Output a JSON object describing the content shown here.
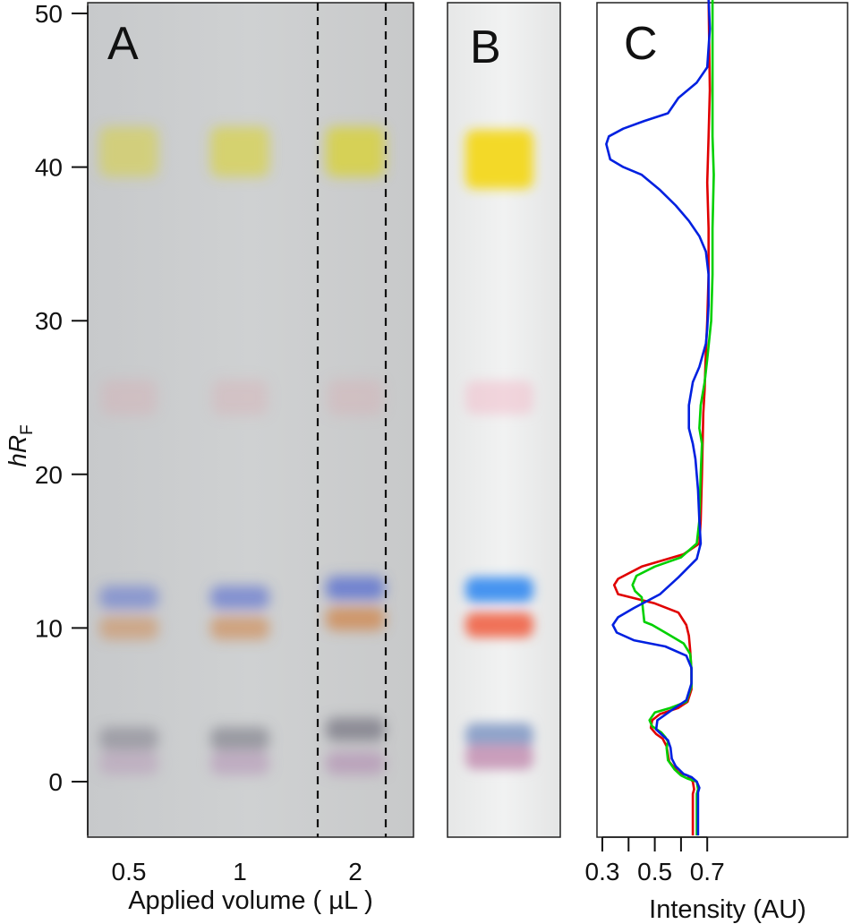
{
  "chart_data": [
    {
      "panel": "A",
      "type": "image",
      "panel_label": "A",
      "ylabel_main": "hR",
      "ylabel_sub": "F",
      "ylim": [
        -3.5,
        50.5
      ],
      "yticks": [
        0,
        10,
        20,
        30,
        40,
        50
      ],
      "xlabel": "Applied volume ( µL )",
      "categories": [
        "0.5",
        "1",
        "2"
      ],
      "bands": [
        {
          "name": "yellow",
          "hRF": 41,
          "color": "#d8d23a"
        },
        {
          "name": "pink",
          "hRF": 25,
          "color": "#d9a8b0"
        },
        {
          "name": "blue",
          "hRF": 12,
          "color": "#5a6fd0"
        },
        {
          "name": "orange",
          "hRF": 10,
          "color": "#cf8a52"
        },
        {
          "name": "grey",
          "hRF": 2.8,
          "color": "#7d7c88"
        },
        {
          "name": "mauve",
          "hRF": 1.2,
          "color": "#b79ab8"
        }
      ],
      "dashed_lines": 2
    },
    {
      "panel": "B",
      "type": "image",
      "panel_label": "B",
      "bands": [
        {
          "name": "yellow",
          "hRF": 40.5,
          "color": "#f3d820"
        },
        {
          "name": "pink",
          "hRF": 25,
          "color": "#f2b8c8"
        },
        {
          "name": "blue",
          "hRF": 12.5,
          "color": "#3d8ef0"
        },
        {
          "name": "red-orange",
          "hRF": 10.2,
          "color": "#f06a50"
        },
        {
          "name": "blue-grey",
          "hRF": 3,
          "color": "#8aa0c8"
        },
        {
          "name": "pink-lilac",
          "hRF": 1.6,
          "color": "#c89ab8"
        }
      ]
    },
    {
      "panel": "C",
      "type": "line",
      "panel_label": "C",
      "xlabel": "Intensity (AU)",
      "xticks": [
        "0.3",
        "0.5",
        "0.7"
      ],
      "xlim": [
        0.28,
        0.79
      ],
      "ylim": [
        -3.5,
        50.5
      ],
      "series": [
        {
          "color": "#e00000",
          "points": [
            [
              0.705,
              51
            ],
            [
              0.71,
              45
            ],
            [
              0.705,
              42
            ],
            [
              0.7,
              39
            ],
            [
              0.705,
              36
            ],
            [
              0.705,
              33
            ],
            [
              0.7,
              30
            ],
            [
              0.695,
              28
            ],
            [
              0.69,
              25.5
            ],
            [
              0.685,
              24
            ],
            [
              0.68,
              20
            ],
            [
              0.675,
              17
            ],
            [
              0.67,
              15.5
            ],
            [
              0.61,
              14.8
            ],
            [
              0.45,
              14
            ],
            [
              0.36,
              13.2
            ],
            [
              0.345,
              12.8
            ],
            [
              0.36,
              12.2
            ],
            [
              0.5,
              11.6
            ],
            [
              0.59,
              11
            ],
            [
              0.62,
              10.2
            ],
            [
              0.63,
              9.5
            ],
            [
              0.635,
              8.5
            ],
            [
              0.64,
              7.2
            ],
            [
              0.64,
              6
            ],
            [
              0.625,
              5.2
            ],
            [
              0.59,
              4.8
            ],
            [
              0.52,
              4.4
            ],
            [
              0.49,
              4
            ],
            [
              0.485,
              3.5
            ],
            [
              0.505,
              3.1
            ],
            [
              0.53,
              2.8
            ],
            [
              0.545,
              2.3
            ],
            [
              0.555,
              1.3
            ],
            [
              0.59,
              0.6
            ],
            [
              0.625,
              0.4
            ],
            [
              0.645,
              0
            ],
            [
              0.65,
              -0.5
            ],
            [
              0.645,
              -0.8
            ],
            [
              0.645,
              -3.5
            ]
          ]
        },
        {
          "color": "#00d000",
          "points": [
            [
              0.72,
              51
            ],
            [
              0.72,
              45
            ],
            [
              0.72,
              42
            ],
            [
              0.725,
              39.5
            ],
            [
              0.72,
              36
            ],
            [
              0.72,
              33
            ],
            [
              0.715,
              30
            ],
            [
              0.7,
              27.5
            ],
            [
              0.69,
              26
            ],
            [
              0.675,
              24.5
            ],
            [
              0.67,
              23
            ],
            [
              0.68,
              22
            ],
            [
              0.675,
              20
            ],
            [
              0.67,
              17
            ],
            [
              0.66,
              15.5
            ],
            [
              0.6,
              14.6
            ],
            [
              0.5,
              14
            ],
            [
              0.43,
              13.4
            ],
            [
              0.415,
              12.8
            ],
            [
              0.425,
              12.4
            ],
            [
              0.45,
              12
            ],
            [
              0.455,
              11.2
            ],
            [
              0.46,
              10.4
            ],
            [
              0.49,
              10.2
            ],
            [
              0.55,
              9.6
            ],
            [
              0.61,
              9
            ],
            [
              0.635,
              8.3
            ],
            [
              0.64,
              7.3
            ],
            [
              0.64,
              6.2
            ],
            [
              0.62,
              5.2
            ],
            [
              0.56,
              4.8
            ],
            [
              0.5,
              4.5
            ],
            [
              0.48,
              4
            ],
            [
              0.49,
              3.6
            ],
            [
              0.525,
              3.2
            ],
            [
              0.54,
              2.9
            ],
            [
              0.55,
              2.6
            ],
            [
              0.545,
              2.2
            ],
            [
              0.55,
              1.4
            ],
            [
              0.575,
              0.8
            ],
            [
              0.6,
              0.4
            ],
            [
              0.625,
              0.2
            ],
            [
              0.66,
              0
            ],
            [
              0.665,
              -0.5
            ],
            [
              0.66,
              -0.8
            ],
            [
              0.66,
              -3.5
            ]
          ]
        },
        {
          "color": "#0020e0",
          "points": [
            [
              0.705,
              51
            ],
            [
              0.71,
              49
            ],
            [
              0.7,
              46.5
            ],
            [
              0.66,
              45.5
            ],
            [
              0.59,
              44.5
            ],
            [
              0.55,
              43.5
            ],
            [
              0.46,
              43
            ],
            [
              0.38,
              42.5
            ],
            [
              0.325,
              42
            ],
            [
              0.315,
              41.5
            ],
            [
              0.33,
              40.5
            ],
            [
              0.38,
              40
            ],
            [
              0.45,
              39.5
            ],
            [
              0.52,
              38.5
            ],
            [
              0.58,
              37.5
            ],
            [
              0.63,
              36.5
            ],
            [
              0.67,
              35.5
            ],
            [
              0.695,
              34.5
            ],
            [
              0.705,
              33
            ],
            [
              0.705,
              31
            ],
            [
              0.7,
              29.5
            ],
            [
              0.695,
              28.5
            ],
            [
              0.67,
              27
            ],
            [
              0.645,
              26
            ],
            [
              0.63,
              24.5
            ],
            [
              0.63,
              23
            ],
            [
              0.645,
              22
            ],
            [
              0.655,
              21
            ],
            [
              0.665,
              19
            ],
            [
              0.67,
              17
            ],
            [
              0.675,
              15.5
            ],
            [
              0.66,
              14.5
            ],
            [
              0.59,
              13.3
            ],
            [
              0.52,
              12.2
            ],
            [
              0.42,
              11.3
            ],
            [
              0.36,
              10.7
            ],
            [
              0.34,
              10.2
            ],
            [
              0.355,
              9.7
            ],
            [
              0.42,
              9.2
            ],
            [
              0.54,
              8.8
            ],
            [
              0.62,
              8.2
            ],
            [
              0.64,
              7.4
            ],
            [
              0.64,
              6.4
            ],
            [
              0.62,
              5.3
            ],
            [
              0.56,
              4.6
            ],
            [
              0.51,
              4
            ],
            [
              0.505,
              3.4
            ],
            [
              0.53,
              3
            ],
            [
              0.55,
              2.7
            ],
            [
              0.56,
              2.2
            ],
            [
              0.565,
              1.5
            ],
            [
              0.58,
              1
            ],
            [
              0.61,
              0.5
            ],
            [
              0.64,
              0.3
            ],
            [
              0.66,
              0
            ],
            [
              0.67,
              -0.4
            ],
            [
              0.665,
              -0.7
            ],
            [
              0.665,
              -3.5
            ]
          ]
        }
      ]
    }
  ]
}
